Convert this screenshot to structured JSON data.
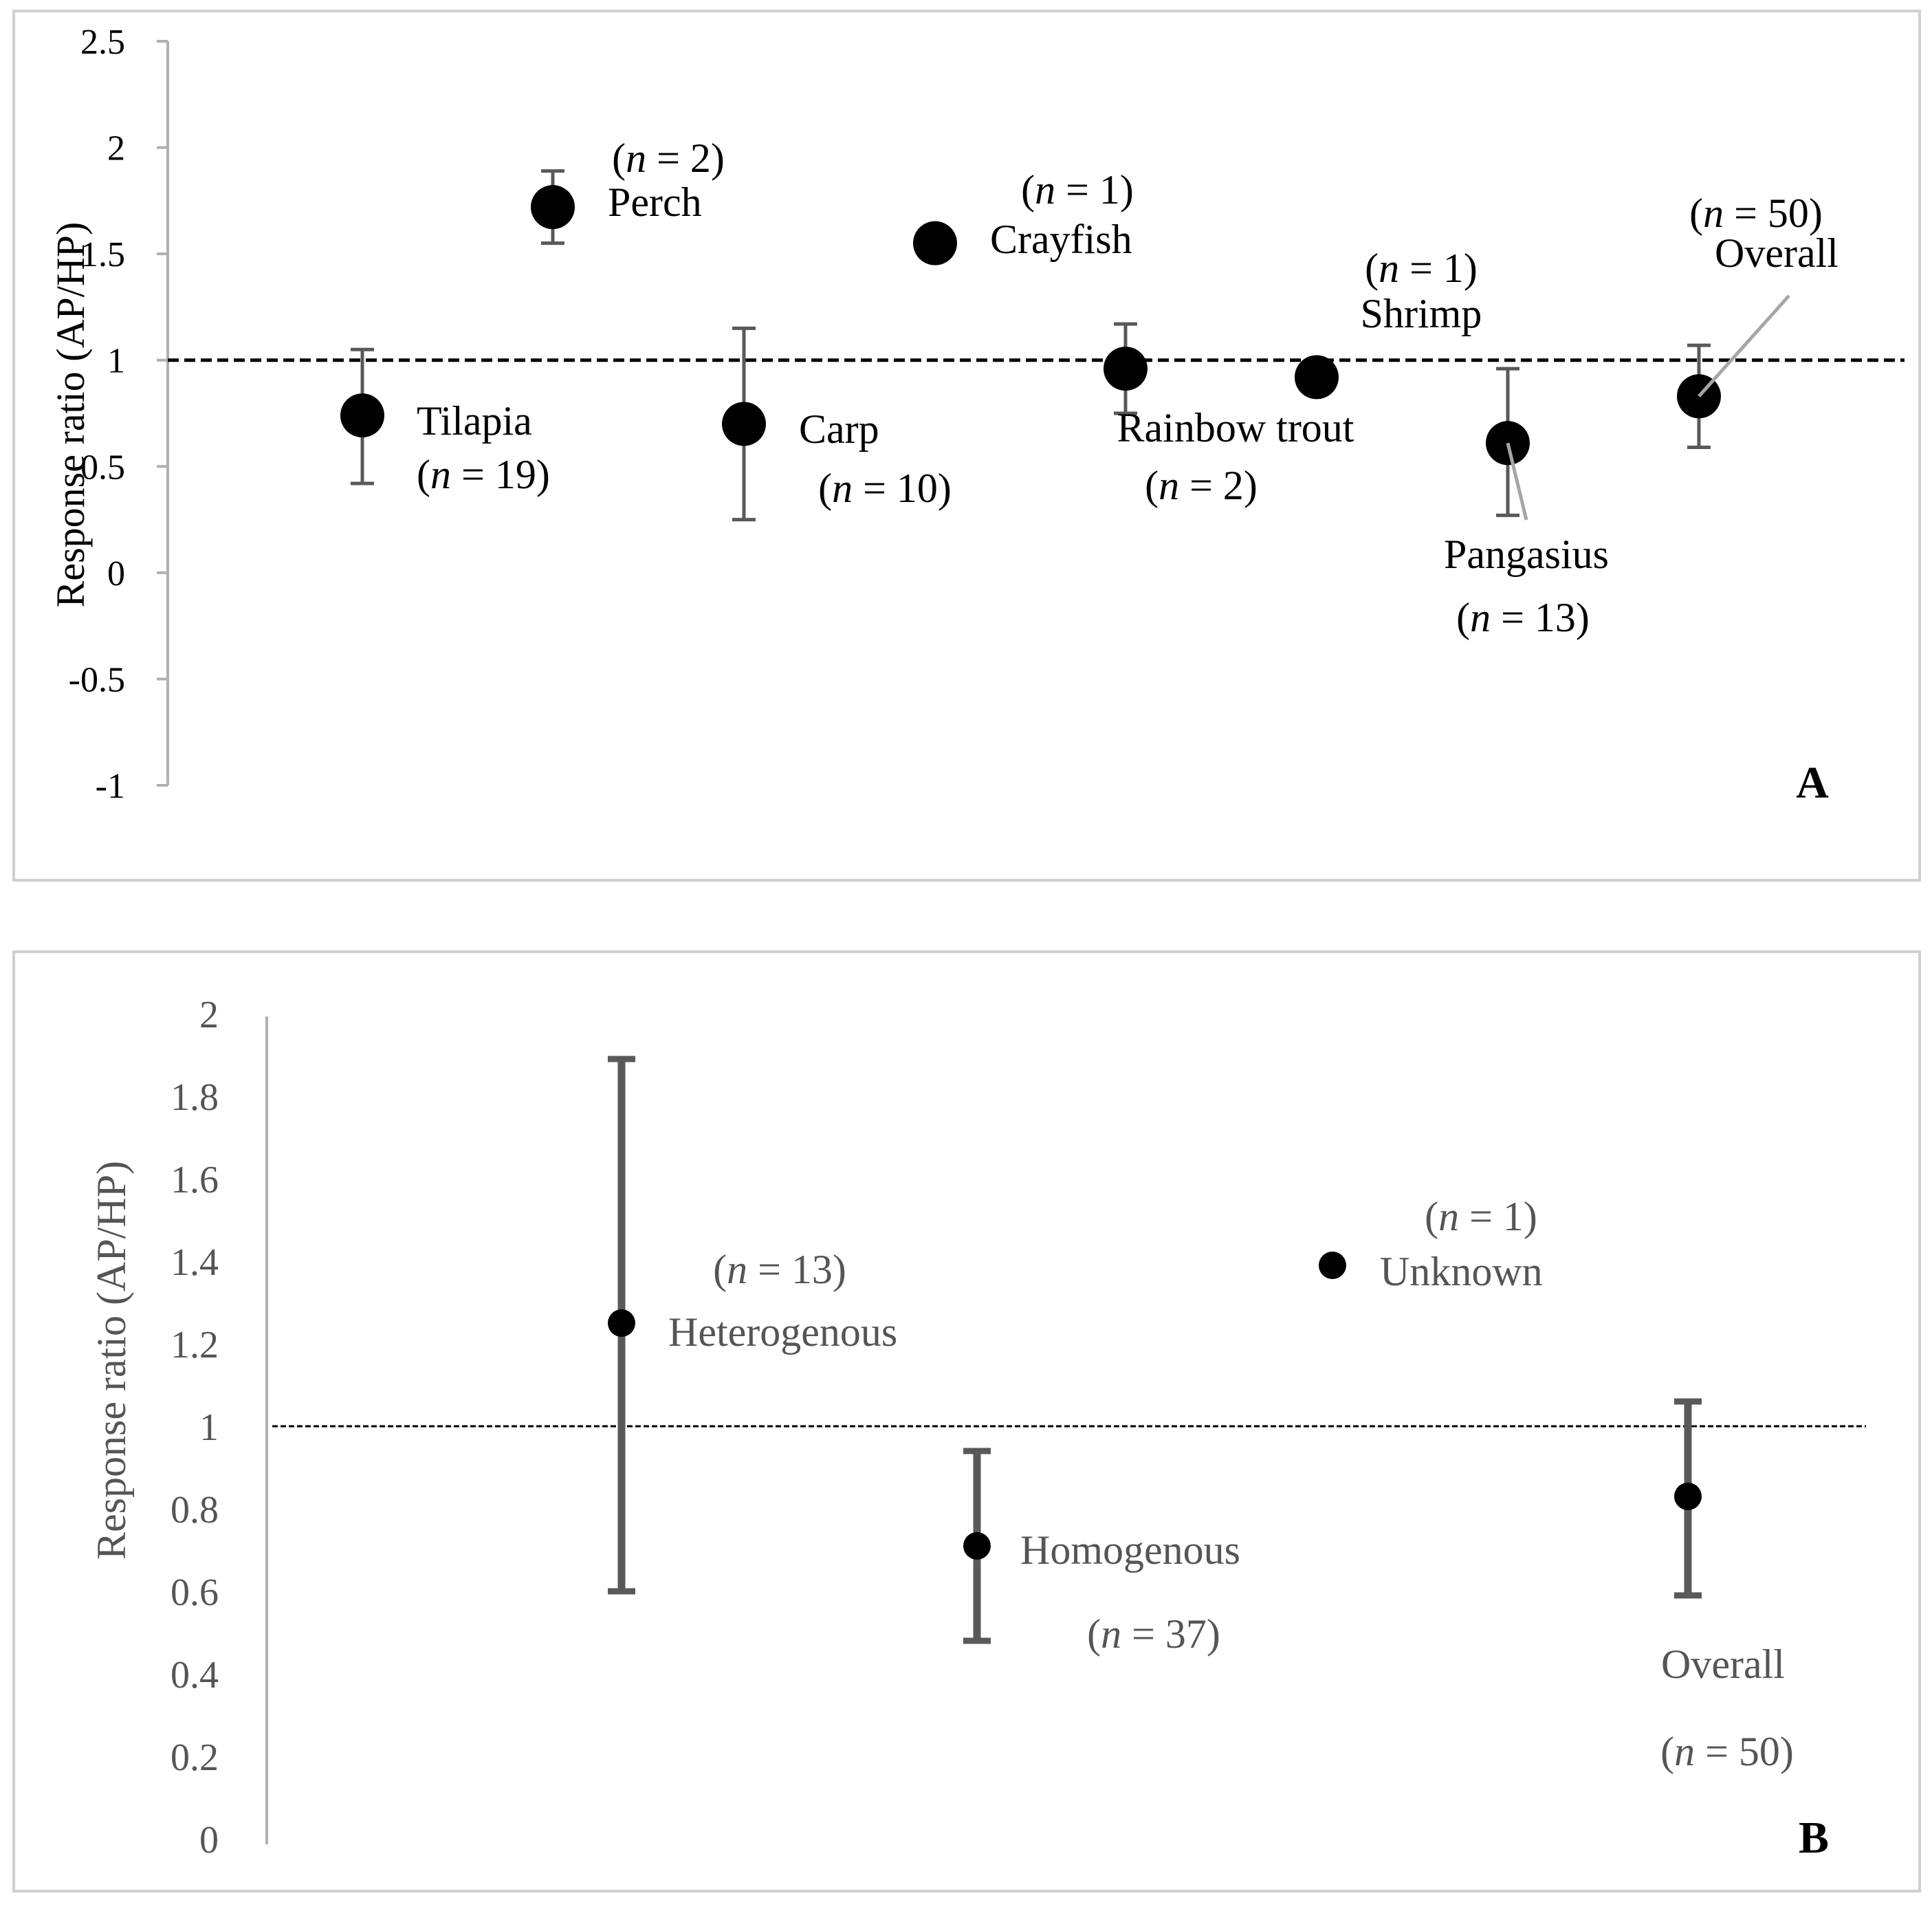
{
  "chart_data": [
    {
      "type": "scatter",
      "panel_label": "A",
      "ylabel": "Response ratio (AP/HP)",
      "ylim": [
        -1,
        2.5
      ],
      "yticks": [
        "2.5",
        "2",
        "1.5",
        "1",
        "0.5",
        "0",
        "-0.5",
        "-1"
      ],
      "yticks_values": [
        2.5,
        2,
        1.5,
        1,
        0.5,
        0,
        -0.5,
        -1
      ],
      "reference_line": 1,
      "points": [
        {
          "name": "Tilapia",
          "n_label": "(n = 19)",
          "n_letter": "n",
          "n_rest": " = 19)",
          "value": 0.74,
          "lower": 0.42,
          "upper": 1.05
        },
        {
          "name": "Perch",
          "n_label": "(n = 2)",
          "n_letter": "n",
          "n_rest": " = 2)",
          "value": 1.72,
          "lower": 1.55,
          "upper": 1.89
        },
        {
          "name": "Carp",
          "n_label": "(n = 10)",
          "n_letter": "n",
          "n_rest": " = 10)",
          "value": 0.7,
          "lower": 0.25,
          "upper": 1.15
        },
        {
          "name": "Crayfish",
          "n_label": "(n = 1)",
          "n_letter": "n",
          "n_rest": " = 1)",
          "value": 1.55,
          "lower": null,
          "upper": null
        },
        {
          "name": "Rainbow trout",
          "n_label": "(n = 2)",
          "n_letter": "n",
          "n_rest": " = 2)",
          "value": 0.96,
          "lower": 0.75,
          "upper": 1.17
        },
        {
          "name": "Shrimp",
          "n_label": "(n = 1)",
          "n_letter": "n",
          "n_rest": " = 1)",
          "value": 0.92,
          "lower": null,
          "upper": null
        },
        {
          "name": "Pangasius",
          "n_label": "(n = 13)",
          "n_letter": "n",
          "n_rest": " = 13)",
          "value": 0.61,
          "lower": 0.27,
          "upper": 0.96
        },
        {
          "name": "Overall",
          "n_label": "(n = 50)",
          "n_letter": "n",
          "n_rest": " = 50)",
          "value": 0.83,
          "lower": 0.59,
          "upper": 1.07
        }
      ]
    },
    {
      "type": "scatter",
      "panel_label": "B",
      "ylabel": "Response ratio (AP/HP)",
      "ylim": [
        0,
        2
      ],
      "yticks": [
        "2",
        "1.8",
        "1.6",
        "1.4",
        "1.2",
        "1",
        "0.8",
        "0.6",
        "0.4",
        "0.2",
        "0"
      ],
      "yticks_values": [
        2,
        1.8,
        1.6,
        1.4,
        1.2,
        1,
        0.8,
        0.6,
        0.4,
        0.2,
        0
      ],
      "reference_line": 1,
      "points": [
        {
          "name": "Heterogenous",
          "n_label": "(n = 13)",
          "n_letter": "n",
          "n_rest": " = 13)",
          "value": 1.25,
          "lower": 0.6,
          "upper": 1.89
        },
        {
          "name": "Homogenous",
          "n_label": "(n = 37)",
          "n_letter": "n",
          "n_rest": " = 37)",
          "value": 0.71,
          "lower": 0.48,
          "upper": 0.94
        },
        {
          "name": "Unknown",
          "n_label": "(n = 1)",
          "n_letter": "n",
          "n_rest": " = 1)",
          "value": 1.39,
          "lower": null,
          "upper": null
        },
        {
          "name": "Overall",
          "n_label": "(n = 50)",
          "n_letter": "n",
          "n_rest": " = 50)",
          "value": 0.83,
          "lower": 0.59,
          "upper": 1.06
        }
      ]
    }
  ]
}
